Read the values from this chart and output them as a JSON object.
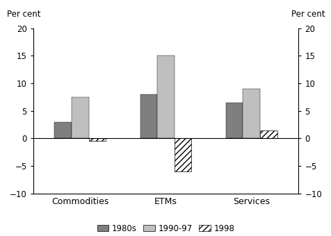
{
  "categories": [
    "Commodities",
    "ETMs",
    "Services"
  ],
  "series": {
    "1980s": [
      3.0,
      8.0,
      6.5
    ],
    "1990-97": [
      7.5,
      15.0,
      9.0
    ],
    "1998": [
      -0.5,
      -6.0,
      1.5
    ]
  },
  "hatch_color": "#000000",
  "hatch_facecolor": "#ffffff",
  "hatch_pattern": "////",
  "ylim": [
    -10,
    20
  ],
  "yticks": [
    -10,
    -5,
    0,
    5,
    10,
    15,
    20
  ],
  "ylabel_text": "Per cent",
  "bar_width": 0.2,
  "legend_labels": [
    "1980s",
    "1990-97",
    "1998"
  ],
  "color_1980s": "#7f7f7f",
  "color_1990": "#bfbfbf",
  "background_color": "#ffffff",
  "axis_color": "#000000",
  "label_fontsize": 8.5,
  "tick_fontsize": 8.5,
  "cat_fontsize": 9.0
}
